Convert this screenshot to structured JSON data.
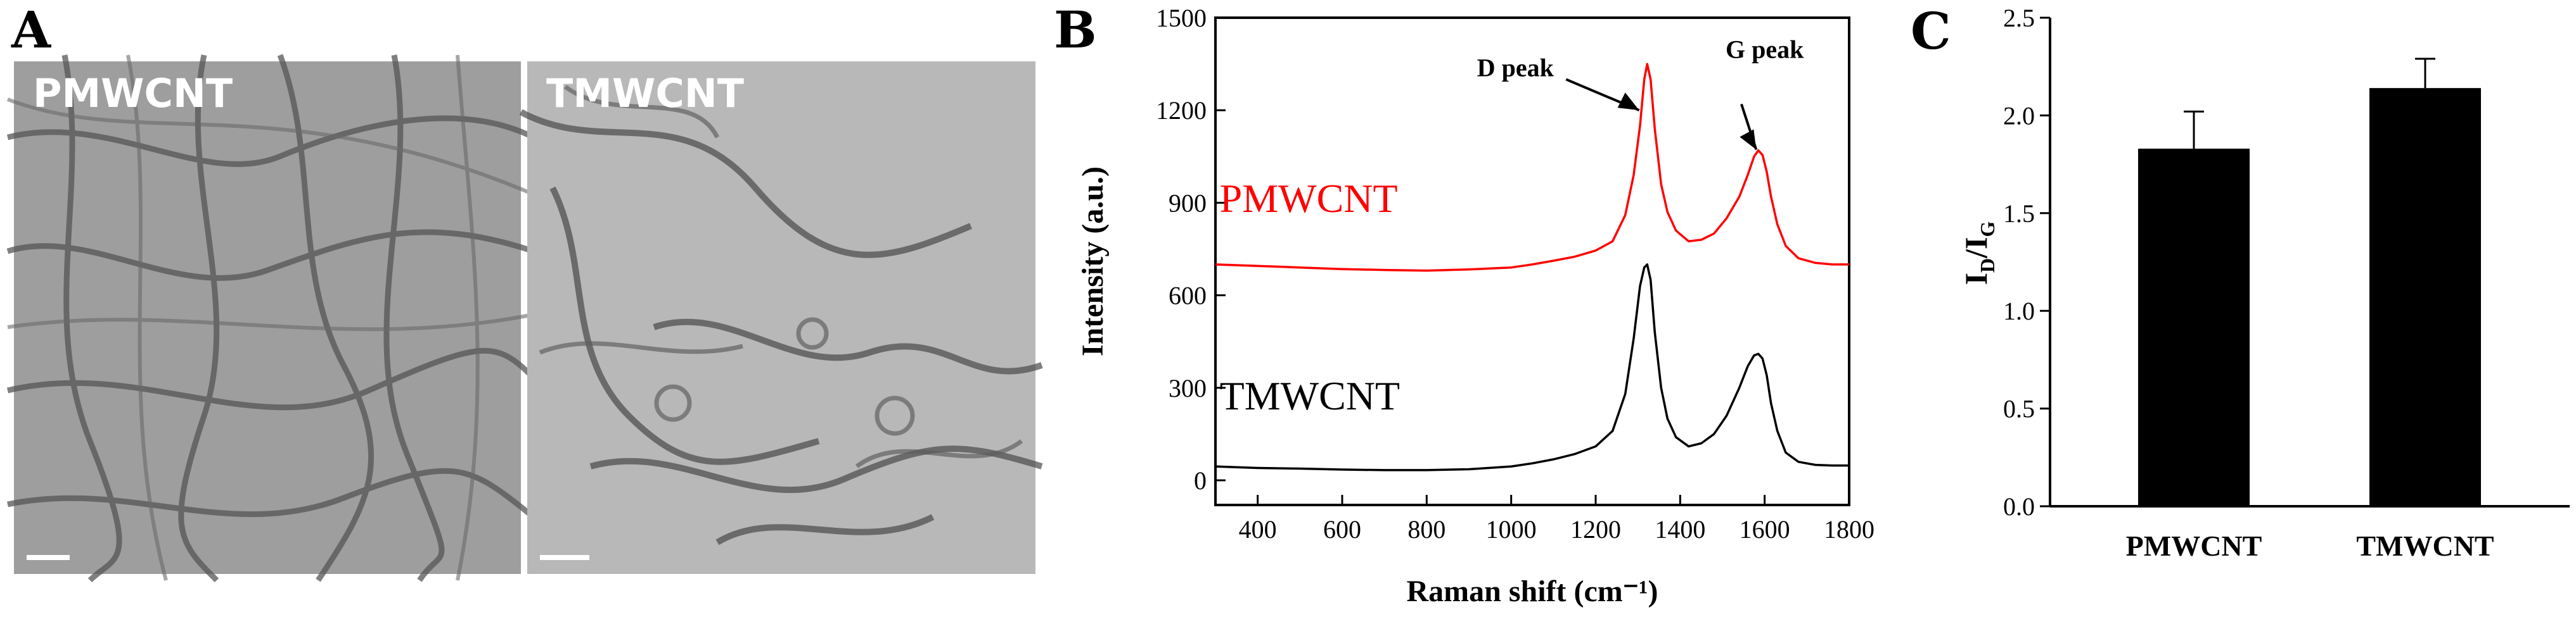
{
  "panels": {
    "a": {
      "letter": "A",
      "left_label": "PMWCNT",
      "right_label": "TMWCNT"
    },
    "b": {
      "letter": "B"
    },
    "c": {
      "letter": "C"
    }
  },
  "chart_data": [
    {
      "type": "line",
      "panel": "B",
      "xlabel": "Raman shift (cm⁻¹)",
      "ylabel": "Intensity (a.u.)",
      "xlim": [
        300,
        1800
      ],
      "ylim": [
        -80,
        1500
      ],
      "xticks": [
        400,
        600,
        800,
        1000,
        1200,
        1400,
        1600,
        1800
      ],
      "yticks": [
        0,
        300,
        600,
        900,
        1200,
        1500
      ],
      "grid": false,
      "series": [
        {
          "name": "PMWCNT",
          "color": "#ff0000",
          "x": [
            300,
            400,
            500,
            600,
            700,
            800,
            900,
            1000,
            1050,
            1100,
            1150,
            1200,
            1240,
            1270,
            1290,
            1305,
            1315,
            1322,
            1330,
            1340,
            1355,
            1370,
            1390,
            1420,
            1450,
            1480,
            1510,
            1540,
            1560,
            1575,
            1585,
            1595,
            1605,
            1615,
            1630,
            1650,
            1680,
            1720,
            1760,
            1800
          ],
          "y": [
            700,
            695,
            690,
            685,
            682,
            680,
            684,
            690,
            700,
            712,
            725,
            745,
            775,
            860,
            990,
            1150,
            1300,
            1350,
            1300,
            1140,
            960,
            870,
            810,
            775,
            780,
            800,
            850,
            920,
            990,
            1050,
            1070,
            1055,
            1000,
            920,
            830,
            760,
            720,
            705,
            700,
            700
          ]
        },
        {
          "name": "TMWCNT",
          "color": "#000000",
          "x": [
            300,
            400,
            500,
            600,
            700,
            800,
            900,
            1000,
            1050,
            1100,
            1150,
            1200,
            1240,
            1270,
            1290,
            1305,
            1315,
            1322,
            1330,
            1340,
            1355,
            1370,
            1390,
            1420,
            1450,
            1480,
            1510,
            1540,
            1560,
            1575,
            1585,
            1595,
            1605,
            1615,
            1630,
            1650,
            1680,
            1720,
            1760,
            1800
          ],
          "y": [
            45,
            40,
            38,
            35,
            33,
            33,
            36,
            45,
            55,
            68,
            85,
            110,
            160,
            280,
            460,
            630,
            690,
            700,
            650,
            480,
            300,
            200,
            140,
            110,
            120,
            150,
            210,
            300,
            370,
            405,
            410,
            395,
            340,
            250,
            160,
            90,
            60,
            50,
            48,
            48
          ]
        }
      ],
      "annotations": [
        {
          "text": "D peak",
          "arrow_to": [
            1315,
            1200
          ]
        },
        {
          "text": "G peak",
          "arrow_to": [
            1580,
            1060
          ]
        }
      ]
    },
    {
      "type": "bar",
      "panel": "C",
      "categories": [
        "PMWCNT",
        "TMWCNT"
      ],
      "values": [
        1.83,
        2.14
      ],
      "errors": [
        0.19,
        0.15
      ],
      "ylim": [
        0,
        2.5
      ],
      "yticks": [
        "0.0",
        "0.5",
        "1.0",
        "1.5",
        "2.0",
        "2.5"
      ],
      "ylabel_main": "I",
      "ylabel_sub_d": "D",
      "ylabel_slash": "/I",
      "ylabel_sub_g": "G",
      "xlabel": "",
      "color": "#000000",
      "grid": false
    }
  ]
}
